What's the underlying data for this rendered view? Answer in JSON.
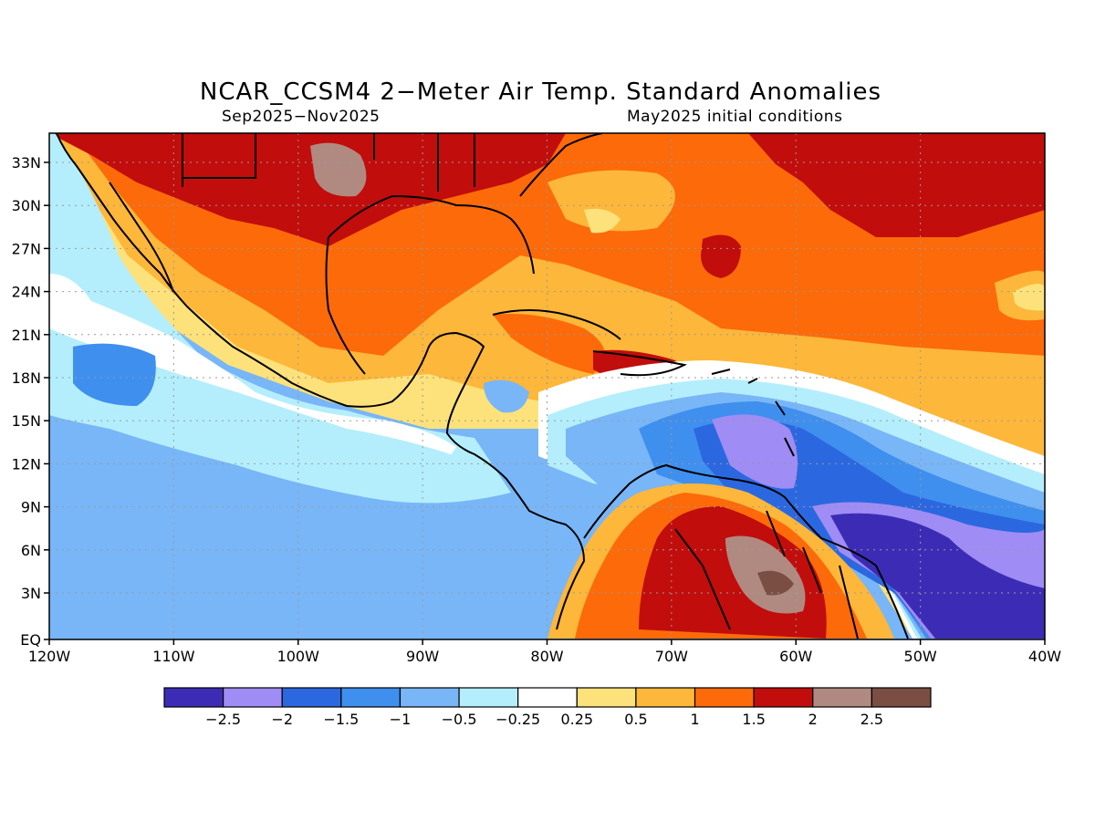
{
  "title": "NCAR_CCSM4 2−Meter Air Temp. Standard Anomalies",
  "subtitle_left": "Sep2025−Nov2025",
  "subtitle_right": "May2025 initial conditions",
  "map": {
    "lat_labels": [
      "33N",
      "30N",
      "27N",
      "24N",
      "21N",
      "18N",
      "15N",
      "12N",
      "9N",
      "6N",
      "3N",
      "EQ"
    ],
    "lon_labels": [
      "120W",
      "110W",
      "100W",
      "90W",
      "80W",
      "70W",
      "60W",
      "50W",
      "40W"
    ]
  },
  "colorbar": {
    "colors": [
      "#3c2cb5",
      "#9f8cf4",
      "#2b68e0",
      "#3f8fee",
      "#78b6f7",
      "#b4eefc",
      "#ffffff",
      "#fde27b",
      "#fdb73a",
      "#fc6a0a",
      "#c10d0c",
      "#b08a80",
      "#7b4e43"
    ],
    "labels": [
      "−2.5",
      "−2",
      "−1.5",
      "−1",
      "−0.5",
      "−0.25",
      "0.25",
      "0.5",
      "1",
      "1.5",
      "2",
      "2.5"
    ]
  },
  "palette": {
    "ocean_cool": "#78b6f7",
    "mid_blue": "#3f8fee",
    "deep_blue": "#3c2cb5",
    "lavender": "#9f8cf4",
    "pale_blue": "#b4eefc",
    "yellow": "#fde27b",
    "light_orange": "#fdb73a",
    "orange": "#fc6a0a",
    "red": "#c10d0c",
    "brown_gray": "#b08a80",
    "dark_brown": "#7b4e43"
  }
}
